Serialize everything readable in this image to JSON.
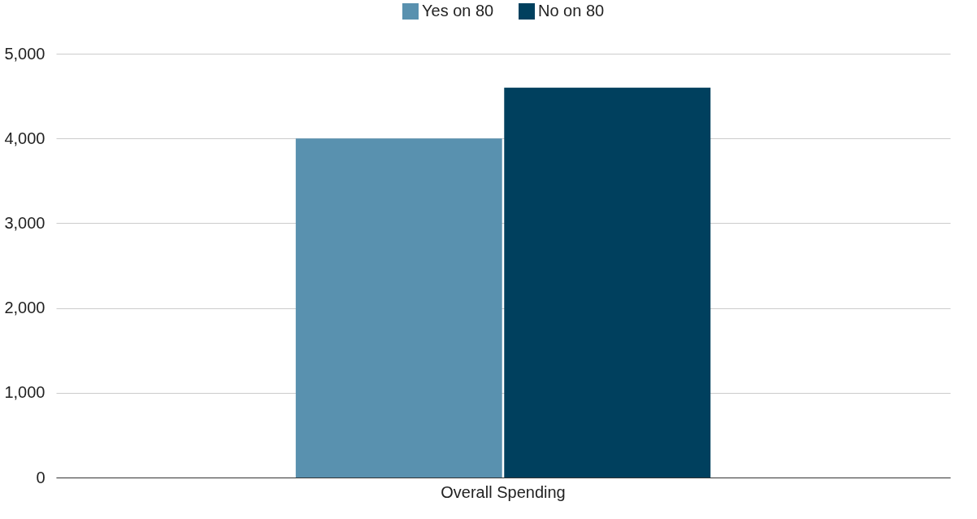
{
  "chart_data": {
    "type": "bar",
    "categories": [
      "Overall Spending"
    ],
    "series": [
      {
        "name": "Yes on 80",
        "color": "#5991af",
        "values": [
          4000
        ]
      },
      {
        "name": "No on 80",
        "color": "#00405e",
        "values": [
          4600
        ]
      }
    ],
    "ylim": [
      0,
      5000
    ],
    "yticks": [
      0,
      {
        "value": 1000,
        "label": "1,000"
      },
      {
        "value": 2000,
        "label": "2,000"
      },
      {
        "value": 3000,
        "label": "3,000"
      },
      {
        "value": 4000,
        "label": "4,000"
      },
      {
        "value": 5000,
        "label": "5,000"
      }
    ],
    "grid": "y",
    "legend": "top"
  }
}
